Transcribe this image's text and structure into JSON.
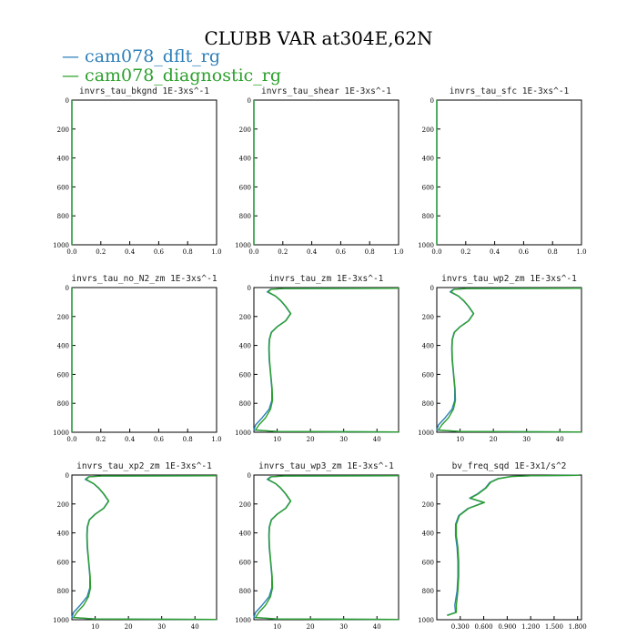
{
  "title": "CLUBB VAR at304E,62N",
  "colors": {
    "dflt": "#2e7fb8",
    "diagnostic": "#2ca02c"
  },
  "legend": [
    {
      "label": "cam078_dflt_rg",
      "color": "#2e7fb8"
    },
    {
      "label": "cam078_diagnostic_rg",
      "color": "#2ca02c"
    }
  ],
  "chart_data": [
    {
      "type": "line",
      "title": "invrs_tau_bkgnd   1E-3xs^-1",
      "xlim": [
        0,
        1
      ],
      "ylim": [
        1000,
        0
      ],
      "xticks": [
        0.0,
        0.2,
        0.4,
        0.6,
        0.8,
        1.0
      ],
      "xticklabels": [
        "0.0",
        "0.2",
        "0.4",
        "0.6",
        "0.8",
        "1.0"
      ],
      "yticks": [
        0,
        200,
        400,
        600,
        800,
        1000
      ],
      "yticklabels": [
        "0",
        "200",
        "400",
        "600",
        "800",
        "1000"
      ],
      "series": [
        {
          "color": "#2e7fb8",
          "x": [
            0,
            0
          ],
          "y": [
            0,
            1000
          ]
        },
        {
          "color": "#2ca02c",
          "x": [
            0,
            0
          ],
          "y": [
            0,
            1000
          ]
        }
      ]
    },
    {
      "type": "line",
      "title": "invrs_tau_shear   1E-3xs^-1",
      "xlim": [
        0,
        1
      ],
      "ylim": [
        1000,
        0
      ],
      "xticks": [
        0.0,
        0.2,
        0.4,
        0.6,
        0.8,
        1.0
      ],
      "xticklabels": [
        "0.0",
        "0.2",
        "0.4",
        "0.6",
        "0.8",
        "1.0"
      ],
      "yticks": [
        0,
        200,
        400,
        600,
        800,
        1000
      ],
      "yticklabels": [
        "0",
        "200",
        "400",
        "600",
        "800",
        "1000"
      ],
      "series": [
        {
          "color": "#2e7fb8",
          "x": [
            0,
            0
          ],
          "y": [
            0,
            1000
          ]
        },
        {
          "color": "#2ca02c",
          "x": [
            0,
            0
          ],
          "y": [
            0,
            1000
          ]
        }
      ]
    },
    {
      "type": "line",
      "title": "invrs_tau_sfc   1E-3xs^-1",
      "xlim": [
        0,
        1
      ],
      "ylim": [
        1000,
        0
      ],
      "xticks": [
        0.0,
        0.2,
        0.4,
        0.6,
        0.8,
        1.0
      ],
      "xticklabels": [
        "0.0",
        "0.2",
        "0.4",
        "0.6",
        "0.8",
        "1.0"
      ],
      "yticks": [
        0,
        200,
        400,
        600,
        800,
        1000
      ],
      "yticklabels": [
        "0",
        "200",
        "400",
        "600",
        "800",
        "1000"
      ],
      "series": [
        {
          "color": "#2e7fb8",
          "x": [
            0,
            0
          ],
          "y": [
            0,
            1000
          ]
        },
        {
          "color": "#2ca02c",
          "x": [
            0,
            0
          ],
          "y": [
            0,
            1000
          ]
        }
      ]
    },
    {
      "type": "line",
      "title": "invrs_tau_no_N2_zm   1E-3xs^-1",
      "xlim": [
        0,
        1
      ],
      "ylim": [
        1000,
        0
      ],
      "xticks": [
        0.0,
        0.2,
        0.4,
        0.6,
        0.8,
        1.0
      ],
      "xticklabels": [
        "0.0",
        "0.2",
        "0.4",
        "0.6",
        "0.8",
        "1.0"
      ],
      "yticks": [
        0,
        200,
        400,
        600,
        800,
        1000
      ],
      "yticklabels": [
        "0",
        "200",
        "400",
        "600",
        "800",
        "1000"
      ],
      "series": [
        {
          "color": "#2e7fb8",
          "x": [
            0,
            0
          ],
          "y": [
            0,
            1000
          ]
        },
        {
          "color": "#2ca02c",
          "x": [
            0,
            0
          ],
          "y": [
            0,
            1000
          ]
        }
      ]
    },
    {
      "type": "line",
      "title": "invrs_tau_zm   1E-3xs^-1",
      "xlim": [
        3,
        46.5
      ],
      "ylim": [
        1000,
        0
      ],
      "xticks": [
        10,
        20,
        30,
        40
      ],
      "xticklabels": [
        "10",
        "20",
        "30",
        "40"
      ],
      "yticks": [
        0,
        200,
        400,
        600,
        800,
        1000
      ],
      "yticklabels": [
        "0",
        "200",
        "400",
        "600",
        "800",
        "1000"
      ],
      "series": [
        {
          "color": "#2e7fb8",
          "x": [
            46.5,
            12,
            8,
            7,
            9.5,
            11,
            12.5,
            14,
            12.5,
            10,
            8.2,
            7.6,
            7.5,
            7.6,
            8.0,
            8.4,
            8.4,
            7.6,
            5.5,
            3.5,
            3.0,
            10,
            46.5
          ],
          "y": [
            5,
            7,
            12,
            30,
            60,
            90,
            130,
            180,
            230,
            270,
            310,
            360,
            420,
            500,
            600,
            700,
            780,
            840,
            900,
            950,
            985,
            995,
            998
          ]
        },
        {
          "color": "#2ca02c",
          "x": [
            46.5,
            12,
            8.2,
            7.3,
            9.6,
            11.1,
            12.6,
            14.1,
            12.6,
            10.1,
            8.3,
            7.7,
            7.6,
            7.7,
            8.1,
            8.5,
            8.6,
            8.0,
            6.5,
            4.5,
            3.5,
            10,
            46.5
          ],
          "y": [
            5,
            7,
            12,
            30,
            60,
            90,
            130,
            180,
            230,
            270,
            310,
            360,
            420,
            500,
            600,
            700,
            780,
            840,
            900,
            950,
            985,
            995,
            998
          ]
        }
      ]
    },
    {
      "type": "line",
      "title": "invrs_tau_wp2_zm   1E-3xs^-1",
      "xlim": [
        3,
        46.5
      ],
      "ylim": [
        1000,
        0
      ],
      "xticks": [
        10,
        20,
        30,
        40
      ],
      "xticklabels": [
        "10",
        "20",
        "30",
        "40"
      ],
      "yticks": [
        0,
        200,
        400,
        600,
        800,
        1000
      ],
      "yticklabels": [
        "0",
        "200",
        "400",
        "600",
        "800",
        "1000"
      ],
      "series": [
        {
          "color": "#2e7fb8",
          "x": [
            46.5,
            12,
            8,
            7,
            9.5,
            11,
            12.5,
            14,
            12.5,
            10,
            8.2,
            7.6,
            7.5,
            7.6,
            8.0,
            8.4,
            8.4,
            7.6,
            5.5,
            3.5,
            3.0,
            10,
            46.5
          ],
          "y": [
            5,
            7,
            12,
            30,
            60,
            90,
            130,
            180,
            230,
            270,
            310,
            360,
            420,
            500,
            600,
            700,
            780,
            840,
            900,
            950,
            985,
            995,
            998
          ]
        },
        {
          "color": "#2ca02c",
          "x": [
            46.5,
            12,
            8.2,
            7.3,
            9.6,
            11.1,
            12.6,
            14.1,
            12.6,
            10.1,
            8.3,
            7.7,
            7.6,
            7.7,
            8.1,
            8.5,
            8.6,
            8.0,
            6.5,
            4.5,
            3.5,
            10,
            46.5
          ],
          "y": [
            5,
            7,
            12,
            30,
            60,
            90,
            130,
            180,
            230,
            270,
            310,
            360,
            420,
            500,
            600,
            700,
            780,
            840,
            900,
            950,
            985,
            995,
            998
          ]
        }
      ]
    },
    {
      "type": "line",
      "title": "invrs_tau_xp2_zm   1E-3xs^-1",
      "xlim": [
        3,
        46.5
      ],
      "ylim": [
        1000,
        0
      ],
      "xticks": [
        10,
        20,
        30,
        40
      ],
      "xticklabels": [
        "10",
        "20",
        "30",
        "40"
      ],
      "yticks": [
        0,
        200,
        400,
        600,
        800,
        1000
      ],
      "yticklabels": [
        "0",
        "200",
        "400",
        "600",
        "800",
        "1000"
      ],
      "series": [
        {
          "color": "#2e7fb8",
          "x": [
            46.5,
            12,
            8,
            7,
            9.5,
            11,
            12.5,
            14,
            12.5,
            10,
            8.2,
            7.6,
            7.5,
            7.6,
            8.0,
            8.4,
            8.4,
            7.6,
            5.5,
            3.5,
            3.0,
            10,
            46.5
          ],
          "y": [
            5,
            7,
            12,
            30,
            60,
            90,
            130,
            180,
            230,
            270,
            310,
            360,
            420,
            500,
            600,
            700,
            780,
            840,
            900,
            950,
            985,
            995,
            998
          ]
        },
        {
          "color": "#2ca02c",
          "x": [
            46.5,
            12,
            8.2,
            7.3,
            9.6,
            11.1,
            12.6,
            14.1,
            12.6,
            10.1,
            8.3,
            7.7,
            7.6,
            7.7,
            8.1,
            8.5,
            8.6,
            8.0,
            6.5,
            4.5,
            3.5,
            10,
            46.5
          ],
          "y": [
            5,
            7,
            12,
            30,
            60,
            90,
            130,
            180,
            230,
            270,
            310,
            360,
            420,
            500,
            600,
            700,
            780,
            840,
            900,
            950,
            985,
            995,
            998
          ]
        }
      ]
    },
    {
      "type": "line",
      "title": "invrs_tau_wp3_zm   1E-3xs^-1",
      "xlim": [
        3,
        46.5
      ],
      "ylim": [
        1000,
        0
      ],
      "xticks": [
        10,
        20,
        30,
        40
      ],
      "xticklabels": [
        "10",
        "20",
        "30",
        "40"
      ],
      "yticks": [
        0,
        200,
        400,
        600,
        800,
        1000
      ],
      "yticklabels": [
        "0",
        "200",
        "400",
        "600",
        "800",
        "1000"
      ],
      "series": [
        {
          "color": "#2e7fb8",
          "x": [
            46.5,
            12,
            8,
            7,
            9.5,
            11,
            12.5,
            14,
            12.5,
            10,
            8.2,
            7.6,
            7.5,
            7.6,
            8.0,
            8.4,
            8.4,
            7.6,
            5.5,
            3.5,
            3.0,
            10,
            46.5
          ],
          "y": [
            5,
            7,
            12,
            30,
            60,
            90,
            130,
            180,
            230,
            270,
            310,
            360,
            420,
            500,
            600,
            700,
            780,
            840,
            900,
            950,
            985,
            995,
            998
          ]
        },
        {
          "color": "#2ca02c",
          "x": [
            46.5,
            12,
            8.2,
            7.3,
            9.6,
            11.1,
            12.6,
            14.1,
            12.6,
            10.1,
            8.3,
            7.7,
            7.6,
            7.7,
            8.1,
            8.5,
            8.6,
            8.0,
            6.5,
            4.5,
            3.5,
            10,
            46.5
          ],
          "y": [
            5,
            7,
            12,
            30,
            60,
            90,
            130,
            180,
            230,
            270,
            310,
            360,
            420,
            500,
            600,
            700,
            780,
            840,
            900,
            950,
            985,
            995,
            998
          ]
        }
      ]
    },
    {
      "type": "line",
      "title": "bv_freq_sqd   1E-3x1/s^2",
      "xlim": [
        0,
        1.85
      ],
      "ylim": [
        1000,
        0
      ],
      "xticks": [
        0.3,
        0.6,
        0.9,
        1.2,
        1.5,
        1.8
      ],
      "xticklabels": [
        "0.300",
        "0.600",
        "0.900",
        "1.200",
        "1.500",
        "1.800"
      ],
      "yticks": [
        0,
        200,
        400,
        600,
        800,
        1000
      ],
      "yticklabels": [
        "0",
        "200",
        "400",
        "600",
        "800",
        "1000"
      ],
      "series": [
        {
          "color": "#2e7fb8",
          "x": [
            1.82,
            1.2,
            0.95,
            0.78,
            0.68,
            0.62,
            0.52,
            0.42,
            0.6,
            0.4,
            0.28,
            0.24,
            0.24,
            0.26,
            0.27,
            0.27,
            0.26,
            0.23,
            0.24,
            0.13
          ],
          "y": [
            2,
            5,
            10,
            25,
            50,
            90,
            130,
            160,
            190,
            230,
            280,
            340,
            420,
            500,
            600,
            700,
            800,
            900,
            950,
            970
          ]
        },
        {
          "color": "#2ca02c",
          "x": [
            1.82,
            1.21,
            0.96,
            0.79,
            0.69,
            0.63,
            0.53,
            0.43,
            0.61,
            0.41,
            0.29,
            0.25,
            0.25,
            0.27,
            0.28,
            0.28,
            0.27,
            0.25,
            0.25,
            0.14
          ],
          "y": [
            2,
            5,
            10,
            25,
            50,
            90,
            130,
            160,
            190,
            230,
            280,
            340,
            420,
            500,
            600,
            700,
            800,
            900,
            950,
            970
          ]
        }
      ]
    }
  ]
}
